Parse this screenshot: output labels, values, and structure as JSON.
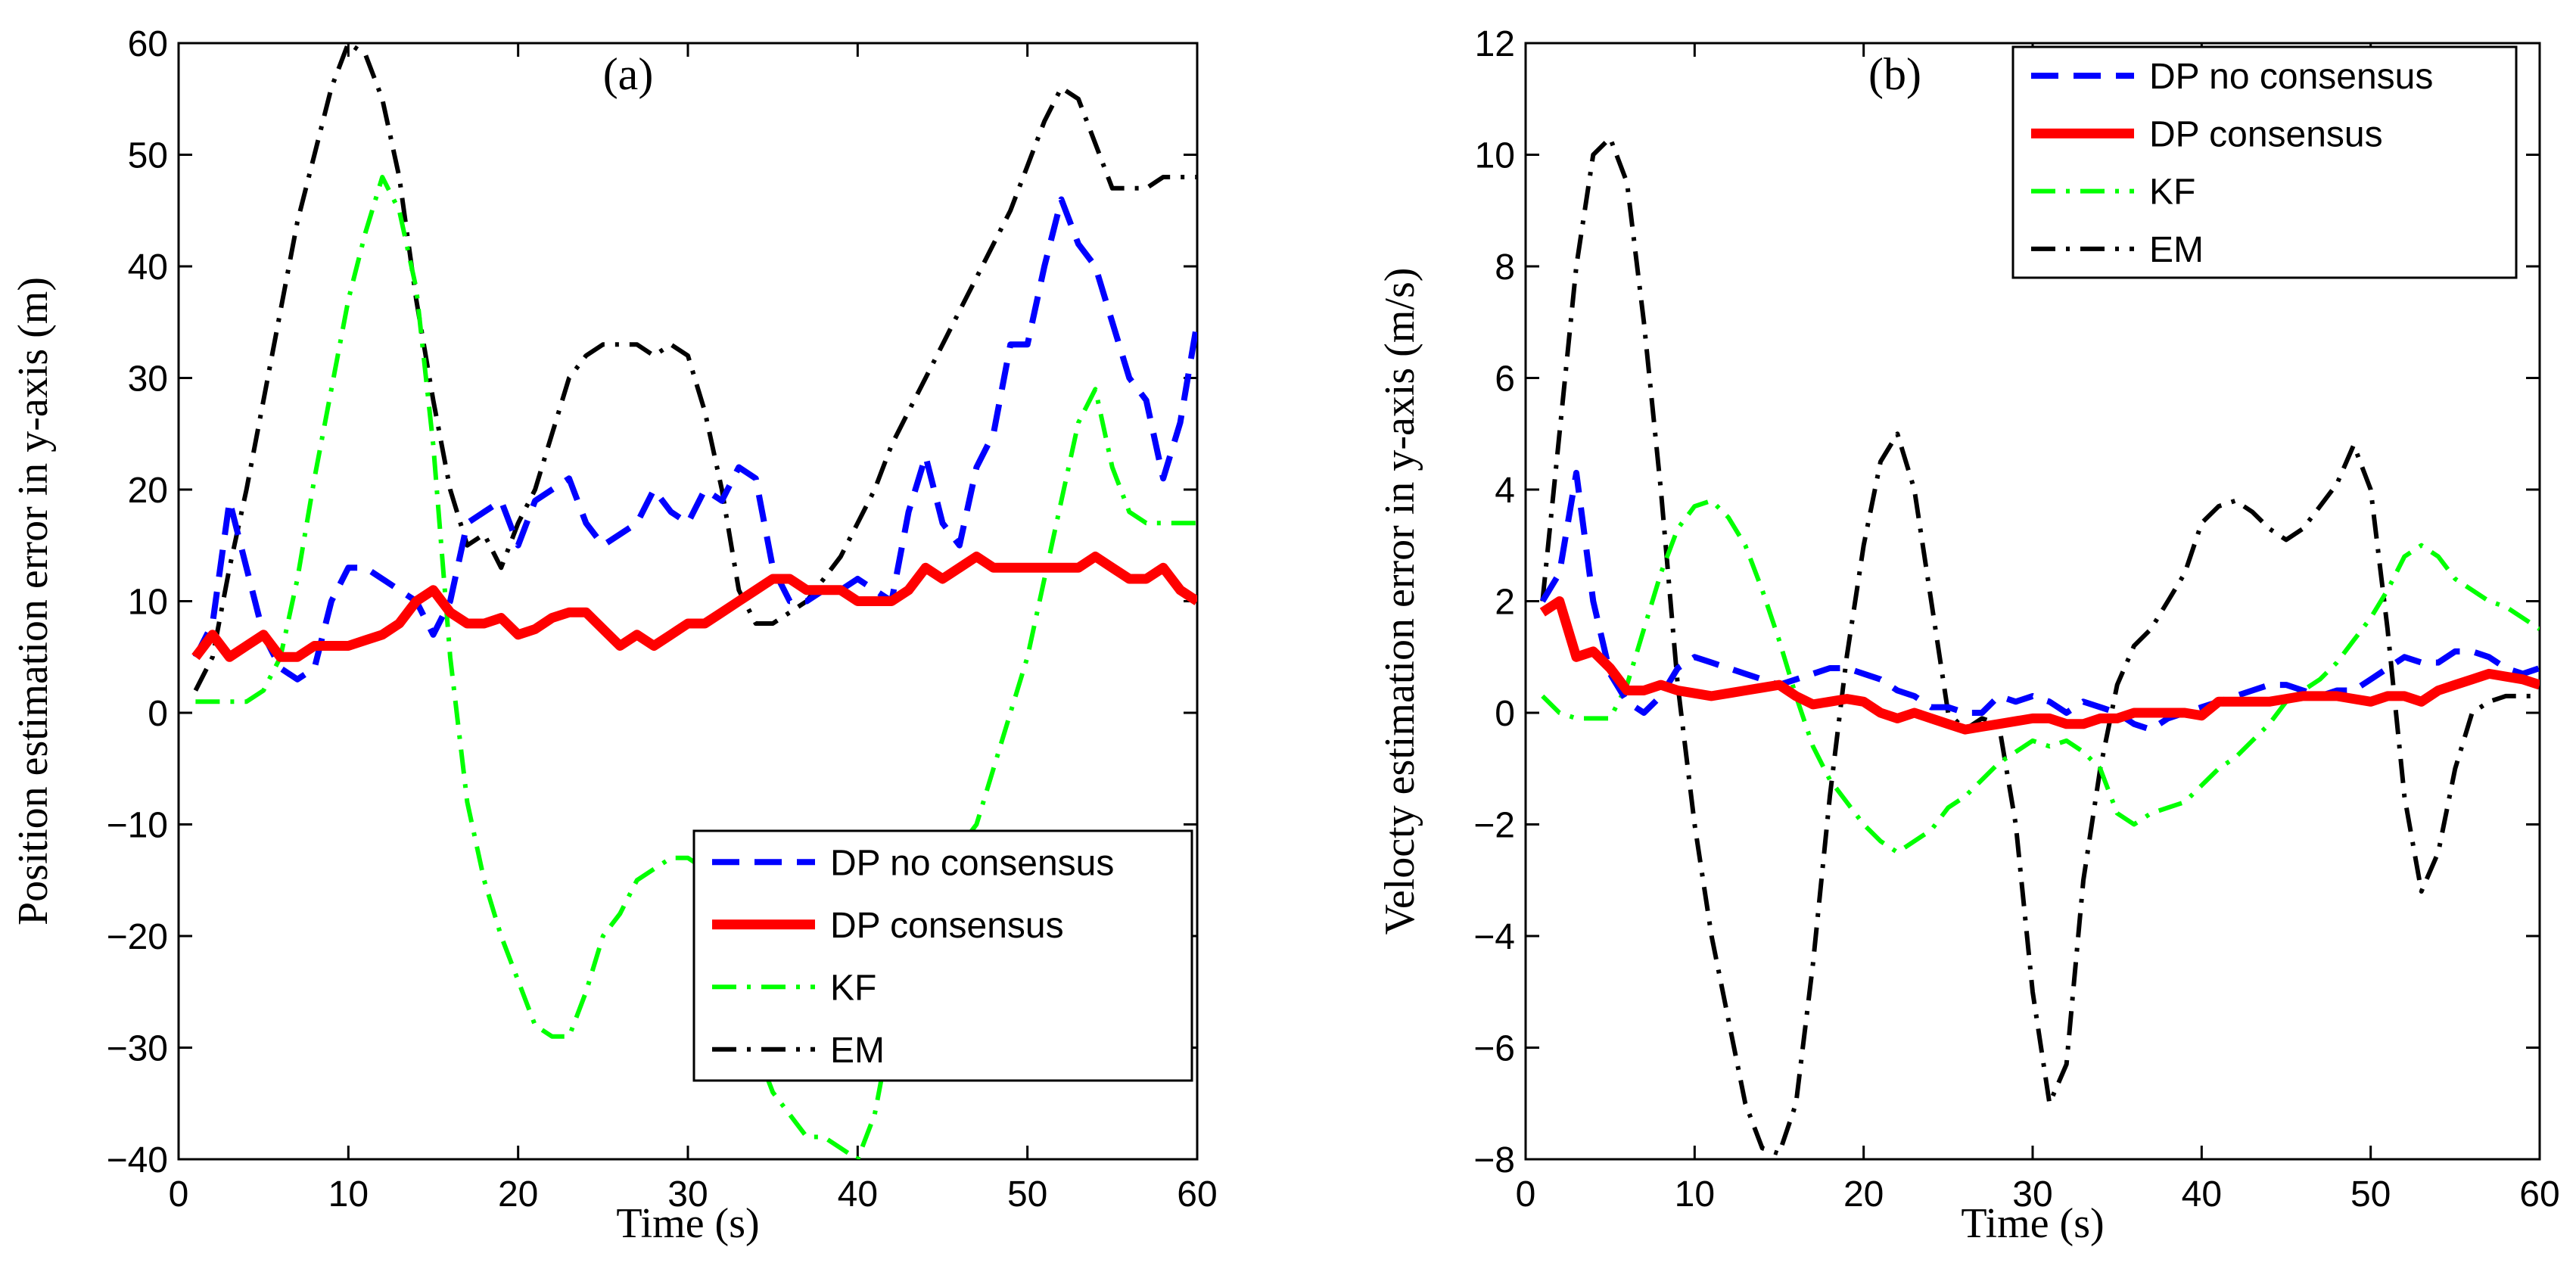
{
  "chart_data": [
    {
      "type": "line",
      "panel_label": "(a)",
      "title": "",
      "xlabel": "Time (s)",
      "ylabel": "Position estimation error in y-axis (m)",
      "xlim": [
        0,
        60
      ],
      "ylim": [
        -40,
        60
      ],
      "xticks": [
        0,
        10,
        20,
        30,
        40,
        50,
        60
      ],
      "yticks": [
        -40,
        -30,
        -20,
        -10,
        0,
        10,
        20,
        30,
        40,
        50,
        60
      ],
      "grid": false,
      "legend_position": "bottom-right",
      "series": [
        {
          "name": "DP no consensus",
          "color": "#0000ff",
          "style": "dashed",
          "x": [
            1,
            2,
            3,
            4,
            5,
            6,
            7,
            8,
            9,
            10,
            11,
            12,
            13,
            14,
            15,
            16,
            17,
            18,
            19,
            20,
            21,
            22,
            23,
            24,
            25,
            26,
            27,
            28,
            29,
            30,
            31,
            32,
            33,
            34,
            35,
            36,
            37,
            38,
            39,
            40,
            41,
            42,
            43,
            44,
            45,
            46,
            47,
            48,
            49,
            50,
            51,
            52,
            53,
            54,
            55,
            56,
            57,
            58,
            59,
            60
          ],
          "y": [
            5,
            8,
            19,
            13,
            7,
            4,
            3,
            4,
            10,
            13,
            13,
            12,
            11,
            10,
            7,
            10,
            17,
            18,
            19,
            15,
            19,
            20,
            21,
            17,
            15,
            16,
            17,
            20,
            18,
            17,
            20,
            19,
            22,
            21,
            13,
            10,
            10,
            11,
            11,
            12,
            11,
            10,
            18,
            23,
            17,
            15,
            22,
            25,
            33,
            33,
            40,
            46,
            42,
            40,
            35,
            30,
            28,
            21,
            26,
            35
          ]
        },
        {
          "name": "DP consensus",
          "color": "#ff0000",
          "style": "solid",
          "x": [
            1,
            2,
            3,
            4,
            5,
            6,
            7,
            8,
            9,
            10,
            11,
            12,
            13,
            14,
            15,
            16,
            17,
            18,
            19,
            20,
            21,
            22,
            23,
            24,
            25,
            26,
            27,
            28,
            29,
            30,
            31,
            32,
            33,
            34,
            35,
            36,
            37,
            38,
            39,
            40,
            41,
            42,
            43,
            44,
            45,
            46,
            47,
            48,
            49,
            50,
            51,
            52,
            53,
            54,
            55,
            56,
            57,
            58,
            59,
            60
          ],
          "y": [
            5,
            7,
            5,
            6,
            7,
            5,
            5,
            6,
            6,
            6,
            6.5,
            7,
            8,
            10,
            11,
            9,
            8,
            8,
            8.5,
            7,
            7.5,
            8.5,
            9,
            9,
            7.5,
            6,
            7,
            6,
            7,
            8,
            8,
            9,
            10,
            11,
            12,
            12,
            11,
            11,
            11,
            10,
            10,
            10,
            11,
            13,
            12,
            13,
            14,
            13,
            13,
            13,
            13,
            13,
            13,
            14,
            13,
            12,
            12,
            13,
            11,
            10
          ]
        },
        {
          "name": "KF",
          "color": "#00ff00",
          "style": "dashdot",
          "x": [
            1,
            2,
            3,
            4,
            5,
            6,
            7,
            8,
            9,
            10,
            11,
            12,
            13,
            14,
            15,
            16,
            17,
            18,
            19,
            20,
            21,
            22,
            23,
            24,
            25,
            26,
            27,
            28,
            29,
            30,
            31,
            32,
            33,
            34,
            35,
            36,
            37,
            38,
            39,
            40,
            41,
            42,
            43,
            44,
            45,
            46,
            47,
            48,
            49,
            50,
            51,
            52,
            53,
            54,
            55,
            56,
            57,
            58,
            59,
            60
          ],
          "y": [
            1,
            1,
            1,
            1,
            2,
            5,
            12,
            21,
            29,
            37,
            43,
            48,
            45,
            38,
            24,
            5,
            -8,
            -15,
            -20,
            -24,
            -28,
            -29,
            -29,
            -25,
            -20,
            -18,
            -15,
            -14,
            -13,
            -13,
            -14,
            -19,
            -26,
            -30,
            -34,
            -36,
            -38,
            -38,
            -39,
            -40,
            -36,
            -28,
            -20,
            -14,
            -12,
            -12,
            -10,
            -5,
            0,
            5,
            12,
            19,
            26,
            29,
            22,
            18,
            17,
            17,
            17,
            17
          ]
        },
        {
          "name": "EM",
          "color": "#000000",
          "style": "dashdot",
          "x": [
            1,
            2,
            3,
            4,
            5,
            6,
            7,
            8,
            9,
            10,
            11,
            12,
            13,
            14,
            15,
            16,
            17,
            18,
            19,
            20,
            21,
            22,
            23,
            24,
            25,
            26,
            27,
            28,
            29,
            30,
            31,
            32,
            33,
            34,
            35,
            36,
            37,
            38,
            39,
            40,
            41,
            42,
            43,
            44,
            45,
            46,
            47,
            48,
            49,
            50,
            51,
            52,
            53,
            54,
            55,
            56,
            57,
            58,
            59,
            60
          ],
          "y": [
            2,
            5,
            13,
            20,
            28,
            36,
            44,
            50,
            56,
            60,
            59,
            55,
            48,
            37,
            28,
            20,
            15,
            16,
            13,
            17,
            20,
            25,
            30,
            32,
            33,
            33,
            33,
            32,
            33,
            32,
            27,
            20,
            11,
            8,
            8,
            9,
            10,
            12,
            14,
            17,
            20,
            24,
            27,
            30,
            33,
            36,
            39,
            42,
            45,
            49,
            53,
            56,
            55,
            51,
            47,
            47,
            47,
            48,
            48,
            48
          ]
        }
      ]
    },
    {
      "type": "line",
      "panel_label": "(b)",
      "title": "",
      "xlabel": "Time (s)",
      "ylabel": "Velocty estimation error in y-axis (m/s)",
      "xlim": [
        0,
        60
      ],
      "ylim": [
        -8,
        12
      ],
      "xticks": [
        0,
        10,
        20,
        30,
        40,
        50,
        60
      ],
      "yticks": [
        -8,
        -6,
        -4,
        -2,
        0,
        2,
        4,
        6,
        8,
        10,
        12
      ],
      "grid": false,
      "legend_position": "top-right",
      "series": [
        {
          "name": "DP no consensus",
          "color": "#0000ff",
          "style": "dashed",
          "x": [
            1,
            2,
            3,
            4,
            5,
            6,
            7,
            8,
            9,
            10,
            11,
            12,
            13,
            14,
            15,
            16,
            17,
            18,
            19,
            20,
            21,
            22,
            23,
            24,
            25,
            26,
            27,
            28,
            29,
            30,
            31,
            32,
            33,
            34,
            35,
            36,
            37,
            38,
            39,
            40,
            41,
            42,
            43,
            44,
            45,
            46,
            47,
            48,
            49,
            50,
            51,
            52,
            53,
            54,
            55,
            56,
            57,
            58,
            59,
            60
          ],
          "y": [
            2,
            2.5,
            4.3,
            2,
            0.7,
            0.2,
            0,
            0.3,
            0.8,
            1,
            0.9,
            0.8,
            0.7,
            0.6,
            0.5,
            0.6,
            0.7,
            0.8,
            0.8,
            0.7,
            0.6,
            0.4,
            0.3,
            0.1,
            0.1,
            0,
            0,
            0.3,
            0.2,
            0.3,
            0.2,
            0,
            0.2,
            0.1,
            0,
            -0.2,
            -0.3,
            -0.1,
            0,
            0.1,
            0.2,
            0.3,
            0.4,
            0.5,
            0.5,
            0.4,
            0.3,
            0.4,
            0.4,
            0.6,
            0.8,
            1,
            0.9,
            0.9,
            1.1,
            1.1,
            1,
            0.8,
            0.7,
            0.8
          ]
        },
        {
          "name": "DP consensus",
          "color": "#ff0000",
          "style": "solid",
          "x": [
            1,
            2,
            3,
            4,
            5,
            6,
            7,
            8,
            9,
            10,
            11,
            12,
            13,
            14,
            15,
            16,
            17,
            18,
            19,
            20,
            21,
            22,
            23,
            24,
            25,
            26,
            27,
            28,
            29,
            30,
            31,
            32,
            33,
            34,
            35,
            36,
            37,
            38,
            39,
            40,
            41,
            42,
            43,
            44,
            45,
            46,
            47,
            48,
            49,
            50,
            51,
            52,
            53,
            54,
            55,
            56,
            57,
            58,
            59,
            60
          ],
          "y": [
            1.8,
            2,
            1,
            1.1,
            0.8,
            0.4,
            0.4,
            0.5,
            0.4,
            0.35,
            0.3,
            0.35,
            0.4,
            0.45,
            0.5,
            0.3,
            0.15,
            0.2,
            0.25,
            0.2,
            0,
            -0.1,
            0,
            -0.1,
            -0.2,
            -0.3,
            -0.25,
            -0.2,
            -0.15,
            -0.1,
            -0.1,
            -0.2,
            -0.2,
            -0.1,
            -0.1,
            0,
            0,
            0,
            0,
            -0.05,
            0.2,
            0.2,
            0.2,
            0.2,
            0.25,
            0.3,
            0.3,
            0.3,
            0.25,
            0.2,
            0.3,
            0.3,
            0.2,
            0.4,
            0.5,
            0.6,
            0.7,
            0.65,
            0.6,
            0.5
          ]
        },
        {
          "name": "KF",
          "color": "#00ff00",
          "style": "dashdot",
          "x": [
            1,
            2,
            3,
            4,
            5,
            6,
            7,
            8,
            9,
            10,
            11,
            12,
            13,
            14,
            15,
            16,
            17,
            18,
            19,
            20,
            21,
            22,
            23,
            24,
            25,
            26,
            27,
            28,
            29,
            30,
            31,
            32,
            33,
            34,
            35,
            36,
            37,
            38,
            39,
            40,
            41,
            42,
            43,
            44,
            45,
            46,
            47,
            48,
            49,
            50,
            51,
            52,
            53,
            54,
            55,
            56,
            57,
            58,
            59,
            60
          ],
          "y": [
            0.3,
            0,
            -0.1,
            -0.1,
            -0.1,
            0.5,
            1.5,
            2.5,
            3.3,
            3.7,
            3.8,
            3.5,
            3,
            2.2,
            1.3,
            0.3,
            -0.6,
            -1.2,
            -1.6,
            -2,
            -2.3,
            -2.5,
            -2.3,
            -2.1,
            -1.7,
            -1.5,
            -1.2,
            -0.9,
            -0.7,
            -0.5,
            -0.6,
            -0.5,
            -0.7,
            -1,
            -1.8,
            -2,
            -1.8,
            -1.7,
            -1.6,
            -1.3,
            -1,
            -0.8,
            -0.5,
            -0.2,
            0.2,
            0.4,
            0.6,
            0.9,
            1.3,
            1.7,
            2.2,
            2.8,
            3,
            2.8,
            2.4,
            2.2,
            2,
            1.9,
            1.7,
            1.5
          ]
        },
        {
          "name": "EM",
          "color": "#000000",
          "style": "dashdot",
          "x": [
            1,
            2,
            3,
            4,
            5,
            6,
            7,
            8,
            9,
            10,
            11,
            12,
            13,
            14,
            15,
            16,
            17,
            18,
            19,
            20,
            21,
            22,
            23,
            24,
            25,
            26,
            27,
            28,
            29,
            30,
            31,
            32,
            33,
            34,
            35,
            36,
            37,
            38,
            39,
            40,
            41,
            42,
            43,
            44,
            45,
            46,
            47,
            48,
            49,
            50,
            51,
            52,
            53,
            54,
            55,
            56,
            57,
            58,
            59,
            60
          ],
          "y": [
            2,
            5,
            8,
            10,
            10.3,
            9.5,
            7,
            4,
            0.5,
            -2,
            -4,
            -5.5,
            -7,
            -7.8,
            -7.9,
            -7,
            -4.5,
            -1.5,
            1,
            3,
            4.5,
            5,
            4,
            2,
            0,
            -0.3,
            -0.1,
            -0.2,
            -2,
            -5,
            -7,
            -6.3,
            -3,
            -1,
            0.5,
            1.2,
            1.5,
            2,
            2.5,
            3.4,
            3.7,
            3.8,
            3.6,
            3.3,
            3.1,
            3.3,
            3.7,
            4.1,
            4.8,
            4,
            1.5,
            -1.5,
            -3.2,
            -2.5,
            -1,
            0,
            0.2,
            0.3,
            0.3,
            0.3
          ]
        }
      ]
    }
  ]
}
